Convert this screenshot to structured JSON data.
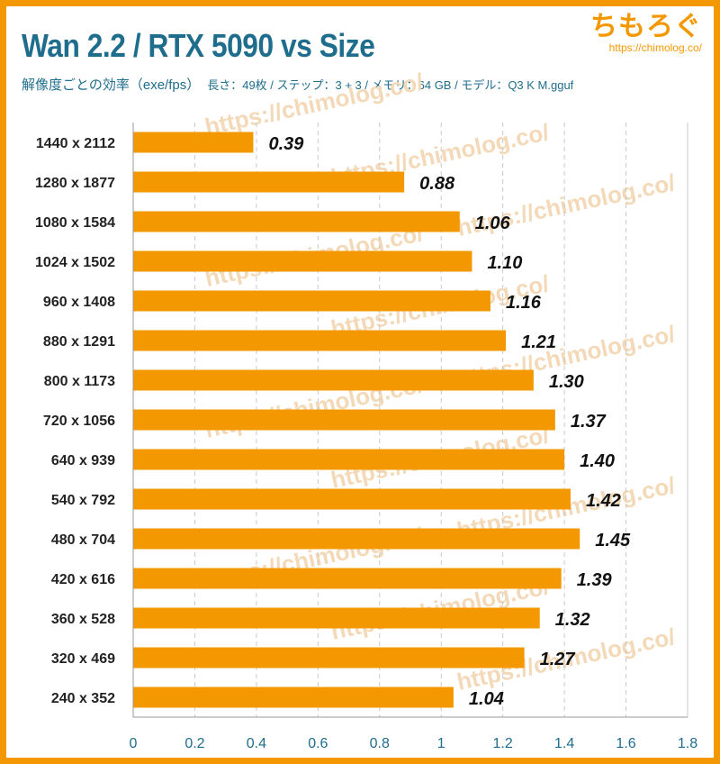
{
  "header": {
    "title": "Wan 2.2 / RTX 5090 vs Size",
    "subtitle": "解像度ごとの効率（exe/fps）",
    "meta": "長さ：49枚 / ステップ：3 + 3 / メモリ：64 GB / モデル：Q3 K M.gguf"
  },
  "logo": {
    "main": "ちもろぐ",
    "url": "https://chimolog.co/"
  },
  "watermark_text": "https://chimolog.co/",
  "colors": {
    "frame": "#f39800",
    "bar": "#f39800",
    "title": "#1f6d8c",
    "grid": "#c8c8c8"
  },
  "chart_data": {
    "type": "bar",
    "orientation": "horizontal",
    "categories": [
      "1440 x 2112",
      "1280 x 1877",
      "1080 x 1584",
      "1024 x 1502",
      "960 x 1408",
      "880 x 1291",
      "800 x 1173",
      "720 x 1056",
      "640 x 939",
      "540 x 792",
      "480 x 704",
      "420 x 616",
      "360 x 528",
      "320 x 469",
      "240 x 352"
    ],
    "values": [
      0.39,
      0.88,
      1.06,
      1.1,
      1.16,
      1.21,
      1.3,
      1.37,
      1.4,
      1.42,
      1.45,
      1.39,
      1.32,
      1.27,
      1.04
    ],
    "value_labels": [
      "0.39",
      "0.88",
      "1.06",
      "1.10",
      "1.16",
      "1.21",
      "1.30",
      "1.37",
      "1.40",
      "1.42",
      "1.45",
      "1.39",
      "1.32",
      "1.27",
      "1.04"
    ],
    "x_ticks": [
      "0",
      "0.2",
      "0.4",
      "0.6",
      "0.8",
      "1",
      "1.2",
      "1.4",
      "1.6",
      "1.8"
    ],
    "xlim": [
      0,
      1.8
    ],
    "grid": "vertical dashed",
    "title": "Wan 2.2 / RTX 5090 vs Size",
    "xlabel": "",
    "ylabel": ""
  }
}
